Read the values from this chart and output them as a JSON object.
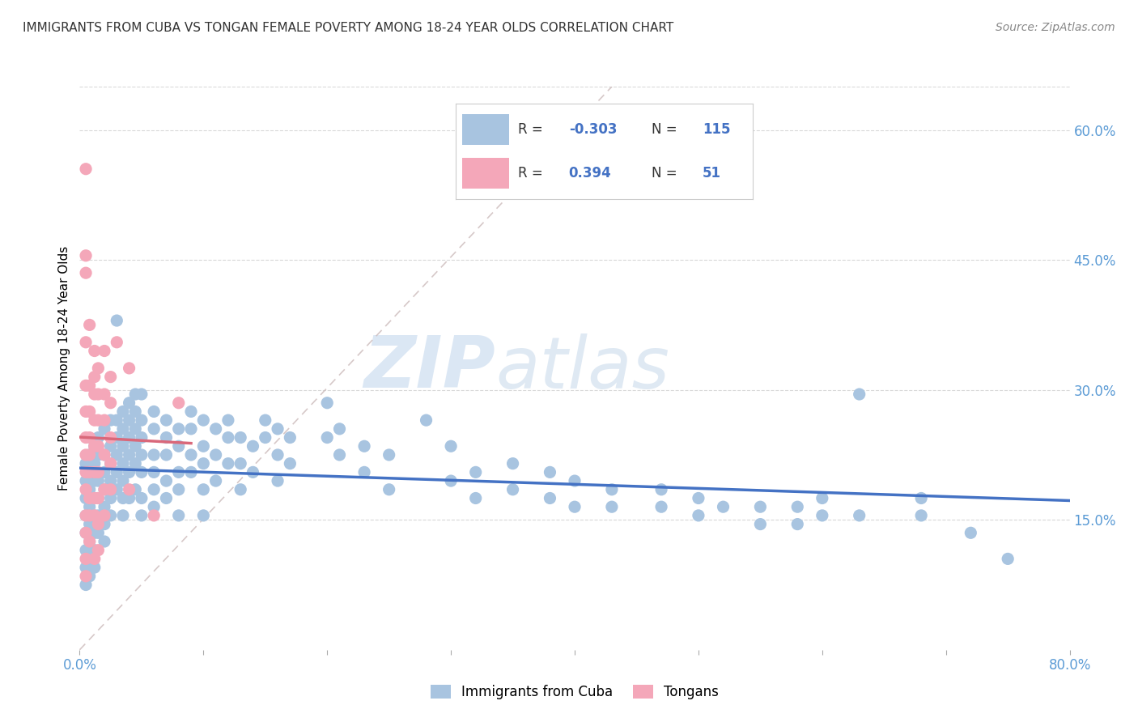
{
  "title": "IMMIGRANTS FROM CUBA VS TONGAN FEMALE POVERTY AMONG 18-24 YEAR OLDS CORRELATION CHART",
  "source": "Source: ZipAtlas.com",
  "ylabel": "Female Poverty Among 18-24 Year Olds",
  "right_yticks": [
    "60.0%",
    "45.0%",
    "30.0%",
    "15.0%"
  ],
  "right_ytick_vals": [
    0.6,
    0.45,
    0.3,
    0.15
  ],
  "legend_label1": "Immigrants from Cuba",
  "legend_label2": "Tongans",
  "color_cuba": "#a8c4e0",
  "color_tongan": "#f4a7b9",
  "color_cuba_line": "#4472c4",
  "color_tongan_line": "#d9687a",
  "watermark_zip": "ZIP",
  "watermark_atlas": "atlas",
  "xlim": [
    0.0,
    0.8
  ],
  "ylim": [
    0.0,
    0.65
  ],
  "cuba_scatter": [
    [
      0.005,
      0.215
    ],
    [
      0.005,
      0.195
    ],
    [
      0.005,
      0.175
    ],
    [
      0.005,
      0.155
    ],
    [
      0.005,
      0.135
    ],
    [
      0.005,
      0.115
    ],
    [
      0.005,
      0.095
    ],
    [
      0.005,
      0.075
    ],
    [
      0.008,
      0.225
    ],
    [
      0.008,
      0.205
    ],
    [
      0.008,
      0.185
    ],
    [
      0.008,
      0.165
    ],
    [
      0.008,
      0.145
    ],
    [
      0.008,
      0.125
    ],
    [
      0.008,
      0.105
    ],
    [
      0.008,
      0.085
    ],
    [
      0.012,
      0.235
    ],
    [
      0.012,
      0.215
    ],
    [
      0.012,
      0.195
    ],
    [
      0.012,
      0.175
    ],
    [
      0.012,
      0.155
    ],
    [
      0.012,
      0.135
    ],
    [
      0.012,
      0.115
    ],
    [
      0.012,
      0.095
    ],
    [
      0.015,
      0.245
    ],
    [
      0.015,
      0.225
    ],
    [
      0.015,
      0.195
    ],
    [
      0.015,
      0.175
    ],
    [
      0.015,
      0.155
    ],
    [
      0.015,
      0.135
    ],
    [
      0.02,
      0.255
    ],
    [
      0.02,
      0.225
    ],
    [
      0.02,
      0.205
    ],
    [
      0.02,
      0.185
    ],
    [
      0.02,
      0.165
    ],
    [
      0.02,
      0.145
    ],
    [
      0.02,
      0.125
    ],
    [
      0.025,
      0.265
    ],
    [
      0.025,
      0.235
    ],
    [
      0.025,
      0.215
    ],
    [
      0.025,
      0.195
    ],
    [
      0.025,
      0.175
    ],
    [
      0.025,
      0.155
    ],
    [
      0.03,
      0.38
    ],
    [
      0.03,
      0.265
    ],
    [
      0.03,
      0.245
    ],
    [
      0.03,
      0.225
    ],
    [
      0.03,
      0.205
    ],
    [
      0.03,
      0.185
    ],
    [
      0.035,
      0.275
    ],
    [
      0.035,
      0.255
    ],
    [
      0.035,
      0.235
    ],
    [
      0.035,
      0.215
    ],
    [
      0.035,
      0.195
    ],
    [
      0.035,
      0.175
    ],
    [
      0.035,
      0.155
    ],
    [
      0.04,
      0.285
    ],
    [
      0.04,
      0.265
    ],
    [
      0.04,
      0.245
    ],
    [
      0.04,
      0.225
    ],
    [
      0.04,
      0.205
    ],
    [
      0.04,
      0.175
    ],
    [
      0.045,
      0.295
    ],
    [
      0.045,
      0.275
    ],
    [
      0.045,
      0.255
    ],
    [
      0.045,
      0.235
    ],
    [
      0.045,
      0.215
    ],
    [
      0.045,
      0.185
    ],
    [
      0.05,
      0.295
    ],
    [
      0.05,
      0.265
    ],
    [
      0.05,
      0.245
    ],
    [
      0.05,
      0.225
    ],
    [
      0.05,
      0.205
    ],
    [
      0.05,
      0.175
    ],
    [
      0.05,
      0.155
    ],
    [
      0.06,
      0.275
    ],
    [
      0.06,
      0.255
    ],
    [
      0.06,
      0.225
    ],
    [
      0.06,
      0.205
    ],
    [
      0.06,
      0.185
    ],
    [
      0.06,
      0.165
    ],
    [
      0.07,
      0.265
    ],
    [
      0.07,
      0.245
    ],
    [
      0.07,
      0.225
    ],
    [
      0.07,
      0.195
    ],
    [
      0.07,
      0.175
    ],
    [
      0.08,
      0.255
    ],
    [
      0.08,
      0.235
    ],
    [
      0.08,
      0.205
    ],
    [
      0.08,
      0.185
    ],
    [
      0.08,
      0.155
    ],
    [
      0.09,
      0.275
    ],
    [
      0.09,
      0.255
    ],
    [
      0.09,
      0.225
    ],
    [
      0.09,
      0.205
    ],
    [
      0.1,
      0.265
    ],
    [
      0.1,
      0.235
    ],
    [
      0.1,
      0.215
    ],
    [
      0.1,
      0.185
    ],
    [
      0.1,
      0.155
    ],
    [
      0.11,
      0.255
    ],
    [
      0.11,
      0.225
    ],
    [
      0.11,
      0.195
    ],
    [
      0.12,
      0.265
    ],
    [
      0.12,
      0.245
    ],
    [
      0.12,
      0.215
    ],
    [
      0.13,
      0.245
    ],
    [
      0.13,
      0.215
    ],
    [
      0.13,
      0.185
    ],
    [
      0.14,
      0.235
    ],
    [
      0.14,
      0.205
    ],
    [
      0.15,
      0.265
    ],
    [
      0.15,
      0.245
    ],
    [
      0.16,
      0.255
    ],
    [
      0.16,
      0.225
    ],
    [
      0.16,
      0.195
    ],
    [
      0.17,
      0.245
    ],
    [
      0.17,
      0.215
    ],
    [
      0.2,
      0.285
    ],
    [
      0.2,
      0.245
    ],
    [
      0.21,
      0.255
    ],
    [
      0.21,
      0.225
    ],
    [
      0.23,
      0.235
    ],
    [
      0.23,
      0.205
    ],
    [
      0.25,
      0.225
    ],
    [
      0.25,
      0.185
    ],
    [
      0.28,
      0.265
    ],
    [
      0.3,
      0.235
    ],
    [
      0.3,
      0.195
    ],
    [
      0.32,
      0.205
    ],
    [
      0.32,
      0.175
    ],
    [
      0.35,
      0.215
    ],
    [
      0.35,
      0.185
    ],
    [
      0.38,
      0.205
    ],
    [
      0.38,
      0.175
    ],
    [
      0.4,
      0.195
    ],
    [
      0.4,
      0.165
    ],
    [
      0.43,
      0.185
    ],
    [
      0.43,
      0.165
    ],
    [
      0.47,
      0.185
    ],
    [
      0.47,
      0.165
    ],
    [
      0.5,
      0.175
    ],
    [
      0.5,
      0.155
    ],
    [
      0.52,
      0.165
    ],
    [
      0.55,
      0.165
    ],
    [
      0.55,
      0.145
    ],
    [
      0.58,
      0.165
    ],
    [
      0.58,
      0.145
    ],
    [
      0.6,
      0.175
    ],
    [
      0.6,
      0.155
    ],
    [
      0.63,
      0.295
    ],
    [
      0.63,
      0.155
    ],
    [
      0.68,
      0.175
    ],
    [
      0.68,
      0.155
    ],
    [
      0.72,
      0.135
    ],
    [
      0.75,
      0.105
    ]
  ],
  "tongan_scatter": [
    [
      0.005,
      0.555
    ],
    [
      0.005,
      0.455
    ],
    [
      0.005,
      0.435
    ],
    [
      0.005,
      0.355
    ],
    [
      0.005,
      0.305
    ],
    [
      0.005,
      0.275
    ],
    [
      0.005,
      0.245
    ],
    [
      0.005,
      0.225
    ],
    [
      0.005,
      0.205
    ],
    [
      0.005,
      0.185
    ],
    [
      0.005,
      0.155
    ],
    [
      0.005,
      0.135
    ],
    [
      0.005,
      0.105
    ],
    [
      0.005,
      0.085
    ],
    [
      0.008,
      0.375
    ],
    [
      0.008,
      0.305
    ],
    [
      0.008,
      0.275
    ],
    [
      0.008,
      0.245
    ],
    [
      0.008,
      0.225
    ],
    [
      0.008,
      0.205
    ],
    [
      0.008,
      0.175
    ],
    [
      0.008,
      0.155
    ],
    [
      0.008,
      0.125
    ],
    [
      0.012,
      0.345
    ],
    [
      0.012,
      0.315
    ],
    [
      0.012,
      0.295
    ],
    [
      0.012,
      0.265
    ],
    [
      0.012,
      0.235
    ],
    [
      0.012,
      0.205
    ],
    [
      0.012,
      0.175
    ],
    [
      0.012,
      0.155
    ],
    [
      0.012,
      0.105
    ],
    [
      0.015,
      0.325
    ],
    [
      0.015,
      0.295
    ],
    [
      0.015,
      0.265
    ],
    [
      0.015,
      0.235
    ],
    [
      0.015,
      0.205
    ],
    [
      0.015,
      0.175
    ],
    [
      0.015,
      0.145
    ],
    [
      0.015,
      0.115
    ],
    [
      0.02,
      0.345
    ],
    [
      0.02,
      0.295
    ],
    [
      0.02,
      0.265
    ],
    [
      0.02,
      0.225
    ],
    [
      0.02,
      0.185
    ],
    [
      0.02,
      0.155
    ],
    [
      0.025,
      0.315
    ],
    [
      0.025,
      0.285
    ],
    [
      0.025,
      0.245
    ],
    [
      0.025,
      0.215
    ],
    [
      0.025,
      0.185
    ],
    [
      0.03,
      0.355
    ],
    [
      0.04,
      0.325
    ],
    [
      0.04,
      0.185
    ],
    [
      0.06,
      0.155
    ],
    [
      0.08,
      0.285
    ]
  ]
}
